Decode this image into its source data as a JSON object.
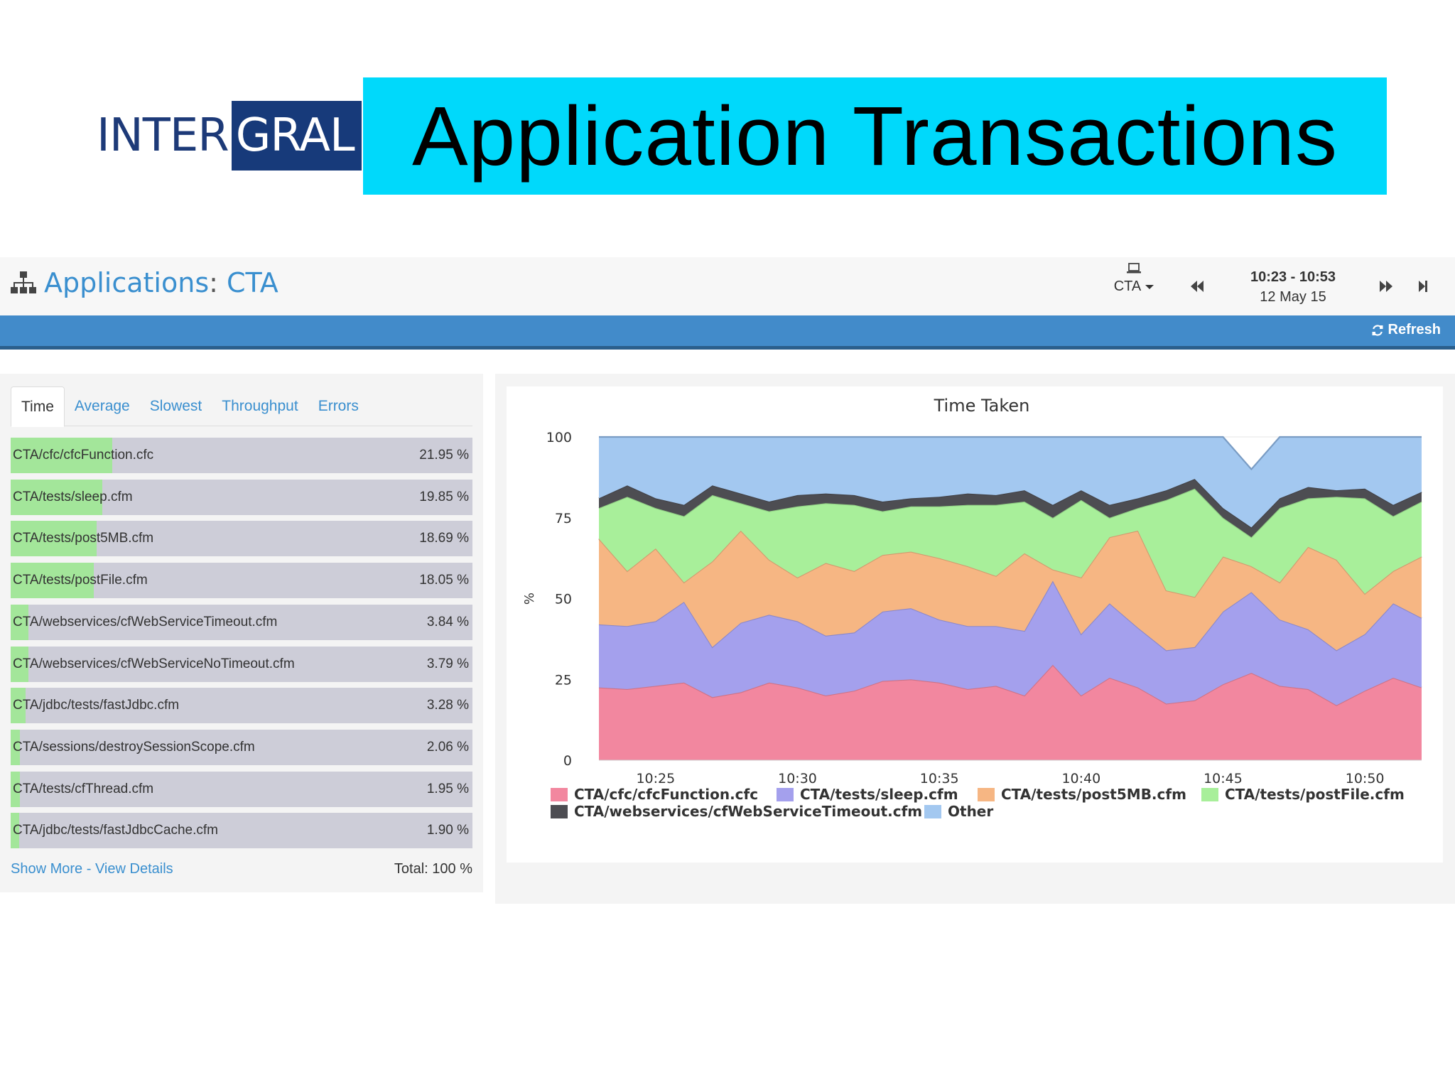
{
  "slide": {
    "logo_left": "INTER",
    "logo_right": "GRAL",
    "title": "Application Transactions"
  },
  "appbar": {
    "section": "Applications",
    "separator": ":",
    "app_name": "CTA",
    "environment": "CTA",
    "time_range": "10:23 - 10:53",
    "date": "12 May 15",
    "refresh_label": "Refresh"
  },
  "colors": {
    "accent": "#3a8fcf",
    "bluebar": "#428bca",
    "banner": "#00d9fb"
  },
  "transactions": {
    "tabs": [
      {
        "label": "Time",
        "active": true
      },
      {
        "label": "Average",
        "active": false
      },
      {
        "label": "Slowest",
        "active": false
      },
      {
        "label": "Throughput",
        "active": false
      },
      {
        "label": "Errors",
        "active": false
      }
    ],
    "rows": [
      {
        "name": "CTA/cfc/cfcFunction.cfc",
        "percent": "21.95 %",
        "share": 21.95
      },
      {
        "name": "CTA/tests/sleep.cfm",
        "percent": "19.85 %",
        "share": 19.85
      },
      {
        "name": "CTA/tests/post5MB.cfm",
        "percent": "18.69 %",
        "share": 18.69
      },
      {
        "name": "CTA/tests/postFile.cfm",
        "percent": "18.05 %",
        "share": 18.05
      },
      {
        "name": "CTA/webservices/cfWebServiceTimeout.cfm",
        "percent": "3.84 %",
        "share": 3.84
      },
      {
        "name": "CTA/webservices/cfWebServiceNoTimeout.cfm",
        "percent": "3.79 %",
        "share": 3.79
      },
      {
        "name": "CTA/jdbc/tests/fastJdbc.cfm",
        "percent": "3.28 %",
        "share": 3.28
      },
      {
        "name": "CTA/sessions/destroySessionScope.cfm",
        "percent": "2.06 %",
        "share": 2.06
      },
      {
        "name": "CTA/tests/cfThread.cfm",
        "percent": "1.95 %",
        "share": 1.95
      },
      {
        "name": "CTA/jdbc/tests/fastJdbcCache.cfm",
        "percent": "1.90 %",
        "share": 1.9
      }
    ],
    "show_more": "Show More",
    "link_separator": "-",
    "view_details": "View Details",
    "total": "Total: 100 %"
  },
  "chart_data": {
    "type": "area",
    "stacked": true,
    "title": "Time Taken",
    "ylabel": "%",
    "ylim": [
      0,
      100
    ],
    "yticks": [
      0,
      25,
      50,
      75,
      100
    ],
    "xlim": [
      "10:23",
      "10:52"
    ],
    "xticks": [
      "10:25",
      "10:30",
      "10:35",
      "10:40",
      "10:45",
      "10:50"
    ],
    "x": [
      "10:23",
      "10:24",
      "10:25",
      "10:26",
      "10:27",
      "10:28",
      "10:29",
      "10:30",
      "10:31",
      "10:32",
      "10:33",
      "10:34",
      "10:35",
      "10:36",
      "10:37",
      "10:38",
      "10:39",
      "10:40",
      "10:41",
      "10:42",
      "10:43",
      "10:44",
      "10:45",
      "10:46",
      "10:47",
      "10:48",
      "10:49",
      "10:50",
      "10:51",
      "10:52"
    ],
    "series": [
      {
        "name": "CTA/cfc/cfcFunction.cfc",
        "color": "#f2879f",
        "values": [
          22.5,
          22,
          23,
          24,
          19.5,
          21,
          24,
          22.5,
          20,
          21.5,
          24.5,
          25,
          24,
          22,
          23,
          20,
          29.5,
          20,
          25.5,
          22.5,
          17.5,
          18.5,
          23.5,
          27,
          23,
          22,
          17,
          21.5,
          25.5,
          22.5
        ]
      },
      {
        "name": "CTA/tests/sleep.cfm",
        "color": "#a4a0ed",
        "values": [
          19.5,
          19.5,
          20,
          25,
          15.5,
          21.5,
          21,
          20.5,
          18.5,
          18,
          21.5,
          22,
          19.5,
          19.5,
          18.5,
          20,
          26,
          19,
          23,
          18.5,
          16.5,
          16.5,
          22.5,
          25,
          20.5,
          18.5,
          17,
          17.5,
          23,
          21.5
        ]
      },
      {
        "name": "CTA/tests/post5MB.cfm",
        "color": "#f6b683",
        "values": [
          26.5,
          17,
          22.5,
          6,
          26.5,
          28.5,
          17,
          13.5,
          22.5,
          19,
          17.5,
          17.5,
          19,
          18.5,
          15.5,
          24,
          3.5,
          17.5,
          20.5,
          30,
          18.5,
          15.5,
          17,
          8,
          11.5,
          25.5,
          28,
          12.5,
          10,
          19
        ]
      },
      {
        "name": "CTA/tests/postFile.cfm",
        "color": "#a8ef9a",
        "values": [
          9.5,
          23,
          12.5,
          20.5,
          20.5,
          8.5,
          15,
          22,
          18.5,
          20.5,
          13.5,
          14,
          16,
          19,
          22,
          16,
          16,
          24,
          6,
          7,
          28,
          33.5,
          12,
          9,
          23,
          15,
          19.5,
          29.5,
          17,
          17
        ]
      },
      {
        "name": "CTA/webservices/cfWebServiceTimeout.cfm",
        "color": "#4d4d52",
        "values": [
          3,
          3.5,
          3,
          3.5,
          3,
          3,
          3,
          3.5,
          3,
          3,
          3,
          2.5,
          3,
          3.5,
          3,
          3.5,
          4,
          3,
          4,
          3,
          3,
          3,
          3,
          3,
          3,
          3.5,
          2,
          3,
          3.5,
          3
        ]
      },
      {
        "name": "Other",
        "color": "#a3c8f0",
        "values": [
          19,
          15,
          19,
          21,
          15,
          17.5,
          20,
          18,
          17.5,
          18,
          20,
          19,
          18.5,
          17.5,
          18,
          16.5,
          21,
          16.5,
          21,
          19,
          16.5,
          13,
          22,
          18,
          19,
          15.5,
          16.5,
          16,
          21,
          17
        ]
      }
    ]
  }
}
